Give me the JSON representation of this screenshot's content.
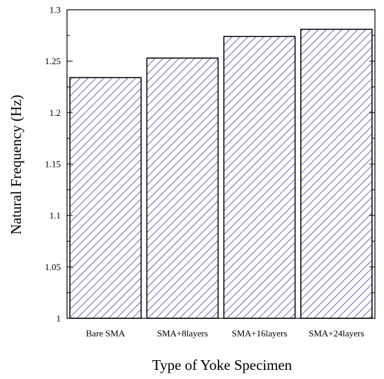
{
  "chart_data": {
    "type": "bar",
    "title": "",
    "xlabel": "Type of Yoke Specimen",
    "ylabel": "Natural Frequency (Hz)",
    "categories": [
      "Bare SMA",
      "SMA+8layers",
      "SMA+16layers",
      "SMA+24layers"
    ],
    "values": [
      1.234,
      1.253,
      1.274,
      1.281
    ],
    "ylim": [
      1,
      1.3
    ],
    "yticks": [
      1,
      1.05,
      1.1,
      1.15,
      1.2,
      1.25,
      1.3
    ],
    "ytick_labels": [
      "1",
      "1.05",
      "1.1",
      "1.15",
      "1.2",
      "1.25",
      "1.3"
    ],
    "grid": false,
    "bar_fill": "diagonal-hatch",
    "hatch_color": "#1c1c8c"
  }
}
